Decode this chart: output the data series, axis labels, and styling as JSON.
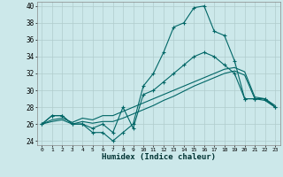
{
  "xlabel": "Humidex (Indice chaleur)",
  "xlim": [
    -0.5,
    23.5
  ],
  "ylim": [
    23.5,
    40.5
  ],
  "yticks": [
    24,
    26,
    28,
    30,
    32,
    34,
    36,
    38,
    40
  ],
  "xticks": [
    0,
    1,
    2,
    3,
    4,
    5,
    6,
    7,
    8,
    9,
    10,
    11,
    12,
    13,
    14,
    15,
    16,
    17,
    18,
    19,
    20,
    21,
    22,
    23
  ],
  "bg_color": "#cce8ea",
  "grid_color": "#b0cccc",
  "line_color": "#006666",
  "line1_x": [
    0,
    1,
    2,
    3,
    4,
    5,
    6,
    7,
    8,
    9,
    10,
    11,
    12,
    13,
    14,
    15,
    16,
    17,
    18,
    19,
    20,
    21,
    22,
    23
  ],
  "line1_y": [
    26,
    27,
    27,
    26,
    26,
    25,
    25,
    24,
    25,
    26,
    30.5,
    32,
    34.5,
    37.5,
    38,
    39.8,
    40,
    37,
    36.5,
    33.5,
    29,
    29,
    29,
    28
  ],
  "line2_x": [
    0,
    1,
    2,
    3,
    4,
    5,
    6,
    7,
    8,
    9,
    10,
    11,
    12,
    13,
    14,
    15,
    16,
    17,
    18,
    19,
    20,
    21,
    22,
    23
  ],
  "line2_y": [
    26,
    27,
    27,
    26,
    26,
    25.5,
    26,
    25,
    28,
    25.5,
    29.5,
    30,
    31,
    32,
    33,
    34,
    34.5,
    34,
    33,
    32,
    29,
    29,
    29,
    28
  ],
  "line3_x": [
    0,
    1,
    2,
    3,
    4,
    5,
    6,
    7,
    8,
    9,
    10,
    11,
    12,
    13,
    14,
    15,
    16,
    17,
    18,
    19,
    20,
    21,
    22,
    23
  ],
  "line3_y": [
    26,
    26.3,
    26.5,
    26,
    26.3,
    26.1,
    26.3,
    26.3,
    26.7,
    27.2,
    27.7,
    28.2,
    28.8,
    29.3,
    29.9,
    30.5,
    31.0,
    31.5,
    32.0,
    32.3,
    31.8,
    29.0,
    28.8,
    28.0
  ],
  "line4_x": [
    0,
    1,
    2,
    3,
    4,
    5,
    6,
    7,
    8,
    9,
    10,
    11,
    12,
    13,
    14,
    15,
    16,
    17,
    18,
    19,
    20,
    21,
    22,
    23
  ],
  "line4_y": [
    26,
    26.5,
    26.7,
    26.2,
    26.7,
    26.5,
    27.0,
    27.0,
    27.5,
    28.0,
    28.5,
    29.0,
    29.5,
    30.0,
    30.5,
    31.0,
    31.5,
    32.0,
    32.5,
    32.7,
    32.2,
    29.2,
    29.0,
    28.2
  ]
}
